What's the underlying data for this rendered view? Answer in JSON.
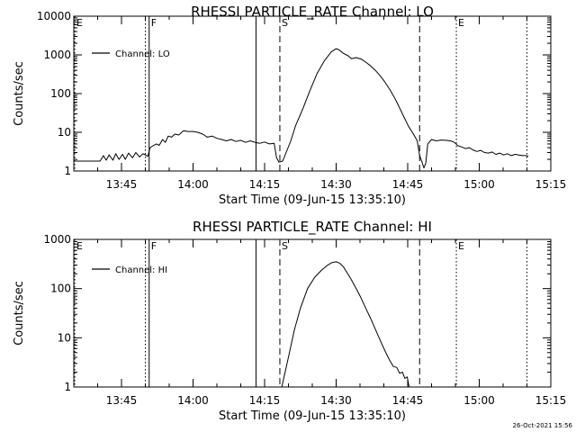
{
  "chart_data": [
    {
      "type": "line",
      "title": "RHESSI PARTICLE_RATE Channel: LO",
      "xlabel": "Start Time (09-Jun-15 13:35:10)",
      "ylabel": "Counts/sec",
      "x_units": "minutes since 13:35:10",
      "xlim": [
        0,
        100
      ],
      "ylim": [
        1,
        10000
      ],
      "yscale": "log",
      "x_tick_positions": [
        10,
        25,
        40,
        55,
        70,
        85,
        100
      ],
      "x_tick_labels": [
        "13:45",
        "14:00",
        "14:15",
        "14:30",
        "14:45",
        "15:00",
        "15:15"
      ],
      "y_tick_values": [
        1,
        10,
        100,
        1000,
        10000
      ],
      "y_tick_labels": [
        "1",
        "10",
        "100",
        "1000",
        "10000"
      ],
      "legend": "Channel: LO",
      "legend_placement": "top-left",
      "markers": [
        {
          "letter": "E",
          "x": 0.2,
          "style": "dotted"
        },
        {
          "letter": "",
          "x": 15.0,
          "style": "dotted"
        },
        {
          "letter": "F",
          "x": 15.8,
          "style": "solid"
        },
        {
          "letter": "",
          "x": 38.2,
          "style": "solid"
        },
        {
          "letter": "S",
          "x": 43.2,
          "style": "dashed"
        },
        {
          "letter": "",
          "x": 72.5,
          "style": "dashed"
        },
        {
          "letter": "E",
          "x": 80.2,
          "style": "dotted"
        },
        {
          "letter": "",
          "x": 95.0,
          "style": "dotted"
        }
      ],
      "series": [
        {
          "name": "Channel: LO",
          "x": [
            0,
            5.5,
            6.2,
            6.8,
            7.4,
            8.2,
            8.8,
            9.5,
            10.2,
            10.8,
            11.5,
            12.3,
            13.0,
            13.8,
            14.5,
            15.0,
            15.5,
            16.0,
            16.6,
            17.3,
            17.9,
            18.6,
            19.2,
            19.8,
            20.5,
            21.2,
            22.0,
            23.0,
            24.0,
            25.0,
            26.0,
            27.0,
            28.0,
            29.0,
            30.0,
            31.0,
            32.0,
            33.0,
            34.0,
            35.0,
            36.0,
            37.0,
            38.0,
            39.0,
            40.0,
            41.0,
            42.0,
            42.5,
            43.0,
            43.8,
            44.5,
            45.5,
            46.5,
            48.0,
            49.5,
            51.0,
            52.5,
            54.0,
            55.0,
            55.6,
            56.5,
            57.5,
            58.2,
            59.2,
            60.2,
            61.2,
            62.2,
            63.2,
            64.2,
            65.2,
            66.2,
            67.2,
            68.2,
            69.2,
            70.2,
            71.2,
            72.0,
            72.5,
            73.0,
            73.4,
            73.8,
            74.2,
            75.0,
            76.0,
            77.0,
            78.0,
            79.0,
            79.8,
            80.5,
            81.3,
            82.1,
            82.9,
            83.7,
            84.5,
            85.3,
            86.1,
            86.9,
            87.7,
            88.5,
            89.3,
            90.1,
            90.9,
            91.7,
            92.5,
            93.3,
            94.1,
            94.9,
            95.3
          ],
          "y": [
            1.8,
            1.8,
            2.5,
            1.9,
            2.6,
            1.9,
            2.8,
            2.0,
            2.7,
            2.0,
            2.9,
            2.2,
            3.0,
            2.3,
            2.8,
            2.6,
            2.4,
            4.0,
            4.5,
            5.0,
            4.6,
            6.5,
            5.5,
            8.0,
            7.5,
            9.0,
            8.5,
            11.0,
            10.5,
            10.5,
            10.0,
            9.0,
            7.5,
            8.0,
            7.0,
            6.5,
            6.0,
            6.5,
            5.8,
            6.2,
            5.5,
            6.0,
            5.5,
            5.2,
            5.6,
            5.0,
            5.2,
            2.2,
            1.7,
            1.8,
            3.0,
            6.0,
            15.0,
            40.0,
            120.0,
            330.0,
            700.0,
            1200.0,
            1450.0,
            1350.0,
            1100.0,
            950.0,
            800.0,
            850.0,
            780.0,
            650.0,
            520.0,
            400.0,
            290.0,
            200.0,
            130.0,
            80.0,
            45.0,
            25.0,
            14.0,
            9.0,
            6.0,
            2.5,
            1.7,
            1.2,
            1.6,
            5.0,
            6.5,
            6.0,
            6.3,
            6.2,
            6.0,
            5.5,
            4.5,
            4.2,
            3.8,
            4.0,
            3.5,
            3.2,
            3.4,
            3.0,
            2.9,
            3.1,
            2.7,
            2.9,
            2.6,
            2.8,
            2.5,
            2.7,
            2.6,
            2.5,
            2.5,
            2.4
          ]
        }
      ]
    },
    {
      "type": "line",
      "title": "RHESSI PARTICLE_RATE Channel: HI",
      "xlabel": "Start Time (09-Jun-15 13:35:10)",
      "ylabel": "Counts/sec",
      "x_units": "minutes since 13:35:10",
      "xlim": [
        0,
        100
      ],
      "ylim": [
        1,
        1000
      ],
      "yscale": "log",
      "x_tick_positions": [
        10,
        25,
        40,
        55,
        70,
        85,
        100
      ],
      "x_tick_labels": [
        "13:45",
        "14:00",
        "14:15",
        "14:30",
        "14:45",
        "15:00",
        "15:15"
      ],
      "y_tick_values": [
        1,
        10,
        100,
        1000
      ],
      "y_tick_labels": [
        "1",
        "10",
        "100",
        "1000"
      ],
      "legend": "Channel: HI",
      "legend_placement": "top-left",
      "markers": [
        {
          "letter": "E",
          "x": 0.2,
          "style": "dotted"
        },
        {
          "letter": "",
          "x": 15.0,
          "style": "dotted"
        },
        {
          "letter": "F",
          "x": 15.8,
          "style": "solid"
        },
        {
          "letter": "",
          "x": 38.2,
          "style": "solid"
        },
        {
          "letter": "S",
          "x": 43.2,
          "style": "dashed"
        },
        {
          "letter": "",
          "x": 72.5,
          "style": "dashed"
        },
        {
          "letter": "E",
          "x": 80.2,
          "style": "dotted"
        },
        {
          "letter": "",
          "x": 95.0,
          "style": "dotted"
        }
      ],
      "series": [
        {
          "name": "Channel: HI",
          "x": [
            43.6,
            44.3,
            45.2,
            46.2,
            47.5,
            49.0,
            50.5,
            52.0,
            53.2,
            54.2,
            55.0,
            55.7,
            56.5,
            57.3,
            58.2,
            59.2,
            60.2,
            61.2,
            62.2,
            63.2,
            64.2,
            65.2,
            66.2,
            67.0,
            67.7,
            68.3,
            68.9,
            69.4,
            69.9,
            70.3
          ],
          "y": [
            1.0,
            2.0,
            5.0,
            14.0,
            40.0,
            100.0,
            170.0,
            240.0,
            300.0,
            340.0,
            350.0,
            330.0,
            280.0,
            210.0,
            150.0,
            100.0,
            65.0,
            40.0,
            25.0,
            15.0,
            9.0,
            5.5,
            3.5,
            2.6,
            2.5,
            1.9,
            2.0,
            1.5,
            1.6,
            1.0
          ]
        }
      ]
    }
  ],
  "footer_timestamp": "26-Oct-2021 15:56"
}
